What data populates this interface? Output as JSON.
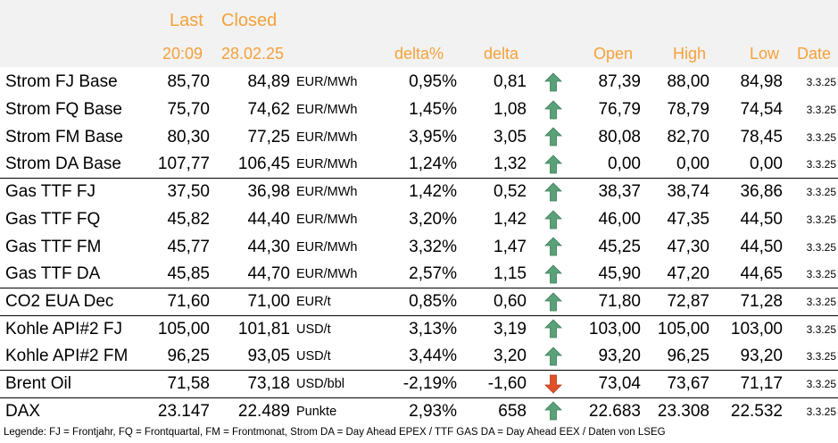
{
  "header": {
    "last": "Last",
    "closed": "Closed",
    "last_time": "20:09",
    "closed_date": "28.02.25",
    "delta_pct": "delta%",
    "delta": "delta",
    "open": "Open",
    "high": "High",
    "low": "Low",
    "date": "Date"
  },
  "rows": [
    {
      "name": "Strom FJ Base",
      "last": "85,70",
      "closed": "84,89",
      "unit": "EUR/MWh",
      "delta_pct": "0,95%",
      "delta": "0,81",
      "dir": "up",
      "open": "87,39",
      "high": "88,00",
      "low": "84,98",
      "date": "3.3.25"
    },
    {
      "name": "Strom FQ Base",
      "last": "75,70",
      "closed": "74,62",
      "unit": "EUR/MWh",
      "delta_pct": "1,45%",
      "delta": "1,08",
      "dir": "up",
      "open": "76,79",
      "high": "78,79",
      "low": "74,54",
      "date": "3.3.25"
    },
    {
      "name": "Strom FM Base",
      "last": "80,30",
      "closed": "77,25",
      "unit": "EUR/MWh",
      "delta_pct": "3,95%",
      "delta": "3,05",
      "dir": "up",
      "open": "80,08",
      "high": "82,70",
      "low": "78,45",
      "date": "3.3.25"
    },
    {
      "name": "Strom DA Base",
      "last": "107,77",
      "closed": "106,45",
      "unit": "EUR/MWh",
      "delta_pct": "1,24%",
      "delta": "1,32",
      "dir": "up",
      "open": "0,00",
      "high": "0,00",
      "low": "0,00",
      "date": "3.3.25"
    },
    {
      "name": "Gas TTF FJ",
      "last": "37,50",
      "closed": "36,98",
      "unit": "EUR/MWh",
      "delta_pct": "1,42%",
      "delta": "0,52",
      "dir": "up",
      "open": "38,37",
      "high": "38,74",
      "low": "36,86",
      "date": "3.3.25"
    },
    {
      "name": "Gas TTF FQ",
      "last": "45,82",
      "closed": "44,40",
      "unit": "EUR/MWh",
      "delta_pct": "3,20%",
      "delta": "1,42",
      "dir": "up",
      "open": "46,00",
      "high": "47,35",
      "low": "44,50",
      "date": "3.3.25"
    },
    {
      "name": "Gas TTF FM",
      "last": "45,77",
      "closed": "44,30",
      "unit": "EUR/MWh",
      "delta_pct": "3,32%",
      "delta": "1,47",
      "dir": "up",
      "open": "45,25",
      "high": "47,30",
      "low": "44,50",
      "date": "3.3.25"
    },
    {
      "name": "Gas TTF DA",
      "last": "45,85",
      "closed": "44,70",
      "unit": "EUR/MWh",
      "delta_pct": "2,57%",
      "delta": "1,15",
      "dir": "up",
      "open": "45,90",
      "high": "47,20",
      "low": "44,65",
      "date": "3.3.25"
    },
    {
      "name": "CO2 EUA Dec",
      "last": "71,60",
      "closed": "71,00",
      "unit": "EUR/t",
      "delta_pct": "0,85%",
      "delta": "0,60",
      "dir": "up",
      "open": "71,80",
      "high": "72,87",
      "low": "71,28",
      "date": "3.3.25"
    },
    {
      "name": "Kohle API#2 FJ",
      "last": "105,00",
      "closed": "101,81",
      "unit": "USD/t",
      "delta_pct": "3,13%",
      "delta": "3,19",
      "dir": "up",
      "open": "103,00",
      "high": "105,00",
      "low": "103,00",
      "date": "3.3.25"
    },
    {
      "name": "Kohle API#2 FM",
      "last": "96,25",
      "closed": "93,05",
      "unit": "USD/t",
      "delta_pct": "3,44%",
      "delta": "3,20",
      "dir": "up",
      "open": "93,20",
      "high": "96,25",
      "low": "93,20",
      "date": "3.3.25"
    },
    {
      "name": "Brent Oil",
      "last": "71,58",
      "closed": "73,18",
      "unit": "USD/bbl",
      "delta_pct": "-2,19%",
      "delta": "-1,60",
      "dir": "down",
      "open": "73,04",
      "high": "73,67",
      "low": "71,17",
      "date": "3.3.25"
    },
    {
      "name": "DAX",
      "last": "23.147",
      "closed": "22.489",
      "unit": "Punkte",
      "delta_pct": "2,93%",
      "delta": "658",
      "dir": "up",
      "open": "22.683",
      "high": "23.308",
      "low": "22.532",
      "date": "3.3.25"
    }
  ],
  "colors": {
    "header_text": "#f4a13a",
    "header_bg": "#f2f2f2",
    "arrow_up": "#5aa078",
    "arrow_down": "#e0522a"
  },
  "icons": {
    "up": "arrow-up-icon",
    "down": "arrow-down-icon"
  },
  "legend": "Legende: FJ = Frontjahr, FQ = Frontquartal, FM = Frontmonat, Strom DA = Day Ahead EPEX / TTF GAS DA = Day Ahead EEX / Daten von LSEG"
}
